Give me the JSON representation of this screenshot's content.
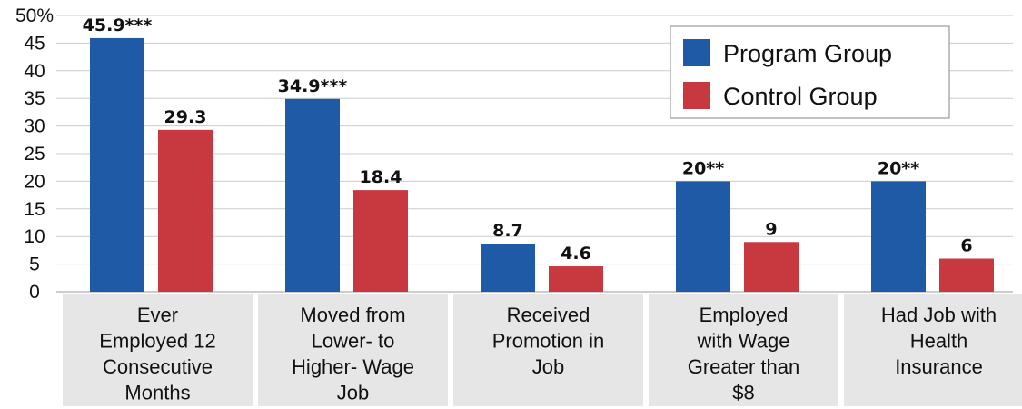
{
  "chart_data": {
    "type": "bar",
    "title": "",
    "xlabel": "",
    "ylabel": "",
    "ylim": [
      0,
      50
    ],
    "y_ticks": [
      "0",
      "5",
      "10",
      "15",
      "20",
      "25",
      "30",
      "35",
      "40",
      "45",
      "50%"
    ],
    "grid": true,
    "legend_position": "top-right",
    "categories": [
      [
        "Ever",
        "Employed 12",
        "Consecutive",
        "Months"
      ],
      [
        "Moved from",
        "Lower- to",
        "Higher- Wage",
        "Job"
      ],
      [
        "Received",
        "Promotion in",
        "Job"
      ],
      [
        "Employed",
        "with Wage",
        "Greater than",
        "$8"
      ],
      [
        "Had Job with",
        "Health",
        "Insurance"
      ]
    ],
    "series": [
      {
        "name": "Program Group",
        "color": "#1f5aa6",
        "values": [
          45.9,
          34.9,
          8.7,
          20,
          20
        ],
        "labels": [
          "45.9***",
          "34.9***",
          "8.7",
          "20**",
          "20**"
        ]
      },
      {
        "name": "Control Group",
        "color": "#c8383f",
        "values": [
          29.3,
          18.4,
          4.6,
          9,
          6
        ],
        "labels": [
          "29.3",
          "18.4",
          "4.6",
          "9",
          "6"
        ]
      }
    ],
    "category_box_color": "#e6e6e6",
    "gridline_color": "#cccccc"
  }
}
